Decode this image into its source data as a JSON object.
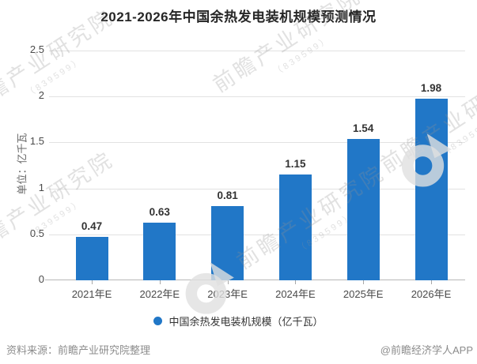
{
  "title": "2021-2026年中国余热发电装机规模预测情况",
  "chart_data": {
    "type": "bar",
    "categories": [
      "2021年E",
      "2022年E",
      "2023年E",
      "2024年E",
      "2025年E",
      "2026年E"
    ],
    "values": [
      0.47,
      0.63,
      0.81,
      1.15,
      1.54,
      1.98
    ],
    "value_labels": [
      "0.47",
      "0.63",
      "0.81",
      "1.15",
      "1.54",
      "1.98"
    ],
    "title": "2021-2026年中国余热发电装机规模预测情况",
    "xlabel": "",
    "ylabel": "单位：亿千瓦",
    "ylim": [
      0,
      2.5
    ],
    "yticks": [
      0,
      0.5,
      1,
      1.5,
      2,
      2.5
    ],
    "grid": true,
    "legend_position": "bottom",
    "series_name": "中国余热发电装机规模（亿千瓦）",
    "bar_color": "#2177C7"
  },
  "y_axis": {
    "unit_label": "单位：亿千瓦"
  },
  "legend": {
    "marker_color": "#2177C7",
    "label": "中国余热发电装机规模（亿千瓦）"
  },
  "footer": {
    "source": "资料来源：前瞻产业研究院整理",
    "credit": "@前瞻经济学人APP"
  },
  "watermark": {
    "brand_text": "前瞻产业研究院",
    "stock_text": "（839599）"
  },
  "colors": {
    "bar": "#2177C7",
    "grid": "#E2E2E2",
    "axis_line": "#B8B8B8",
    "tick_label": "#4A4A4A",
    "value_label": "#333333",
    "footer_text": "#8C8C8C",
    "title": "#262626",
    "background": "#FFFFFF"
  }
}
